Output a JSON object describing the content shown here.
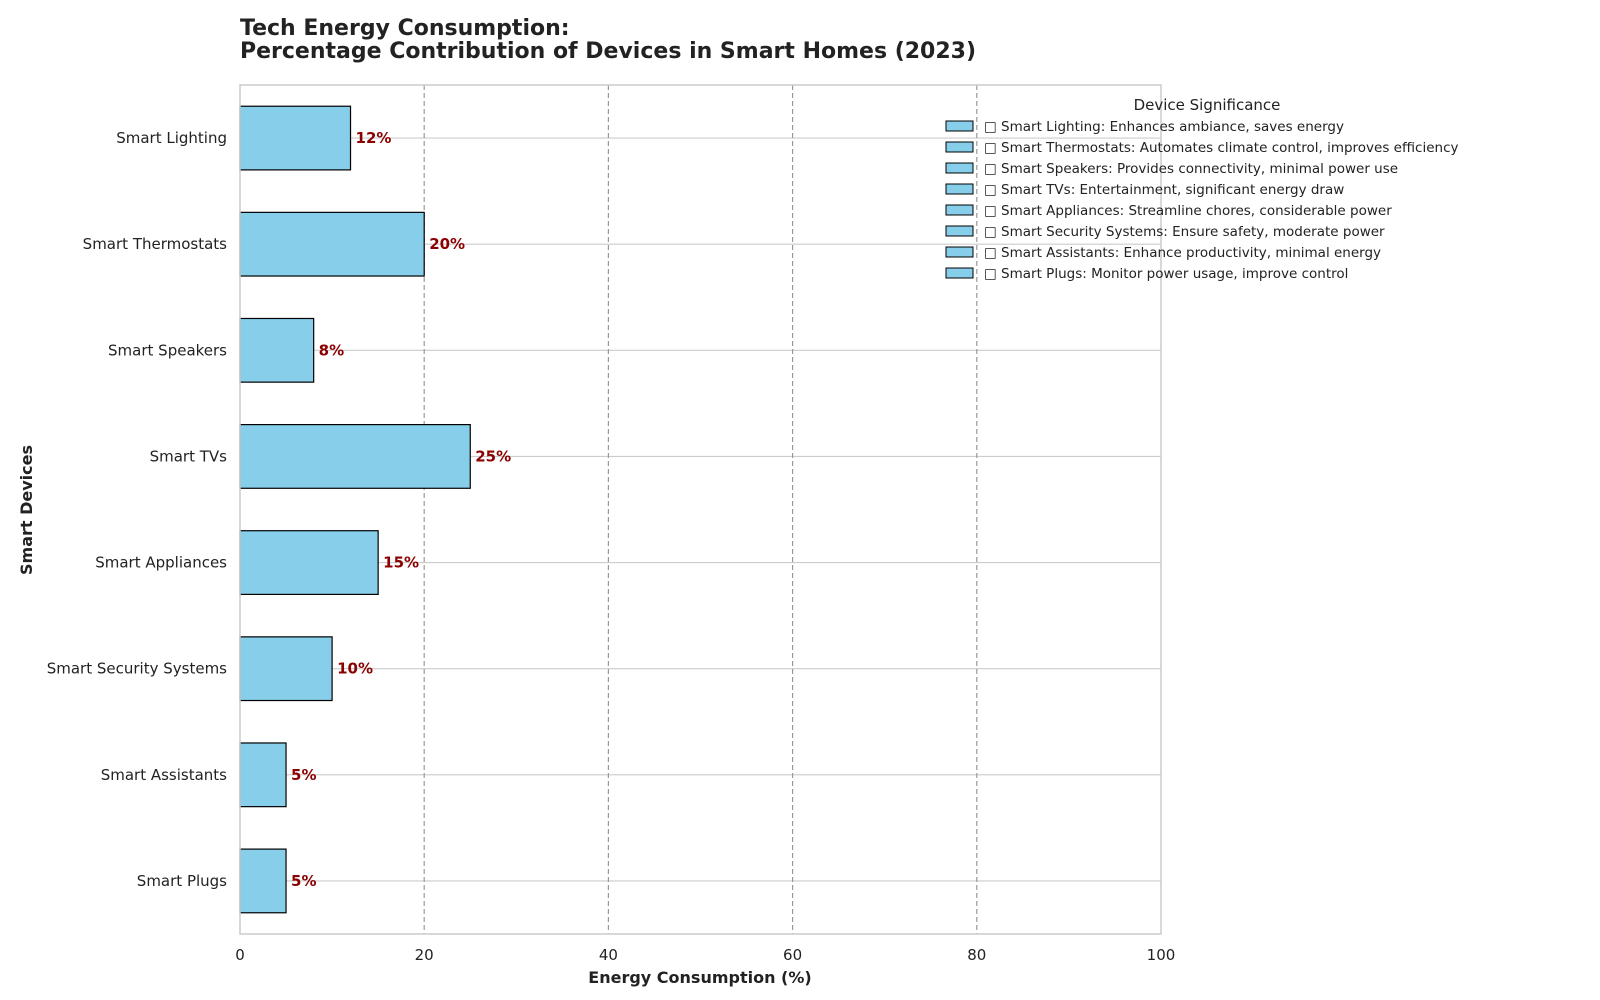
{
  "chart_data": {
    "type": "bar",
    "orientation": "horizontal",
    "title": [
      "Tech Energy Consumption:",
      "Percentage Contribution of Devices in Smart Homes (2023)"
    ],
    "xlabel": "Energy Consumption (%)",
    "ylabel": "Smart Devices",
    "xlim": [
      0,
      100
    ],
    "xticks": [
      0,
      20,
      40,
      60,
      80,
      100
    ],
    "categories": [
      "Smart Lighting",
      "Smart Thermostats",
      "Smart Speakers",
      "Smart TVs",
      "Smart Appliances",
      "Smart Security Systems",
      "Smart Assistants",
      "Smart Plugs"
    ],
    "values": [
      12,
      20,
      8,
      25,
      15,
      10,
      5,
      5
    ],
    "data_labels": [
      "12%",
      "20%",
      "8%",
      "25%",
      "15%",
      "10%",
      "5%",
      "5%"
    ],
    "grid": {
      "x": "dashed",
      "y": "solid"
    },
    "legend": {
      "title": "Device Significance",
      "placement": "top-right",
      "entries": [
        "□ Smart Lighting: Enhances ambiance, saves energy",
        "□ Smart Thermostats: Automates climate control, improves efficiency",
        "□ Smart Speakers: Provides connectivity, minimal power use",
        "□ Smart TVs: Entertainment, significant energy draw",
        "□ Smart Appliances: Streamline chores, considerable power",
        "□ Smart Security Systems: Ensure safety, moderate power",
        "□ Smart Assistants: Enhance productivity, minimal energy",
        "□ Smart Plugs: Monitor power usage, improve control"
      ]
    },
    "colors": {
      "bar": "#87ceeb",
      "bar_edge": "#000000",
      "data_label": "#8b0000",
      "grid_solid": "#cccccc",
      "grid_dashed": "#999999",
      "frame": "#cccccc"
    }
  }
}
